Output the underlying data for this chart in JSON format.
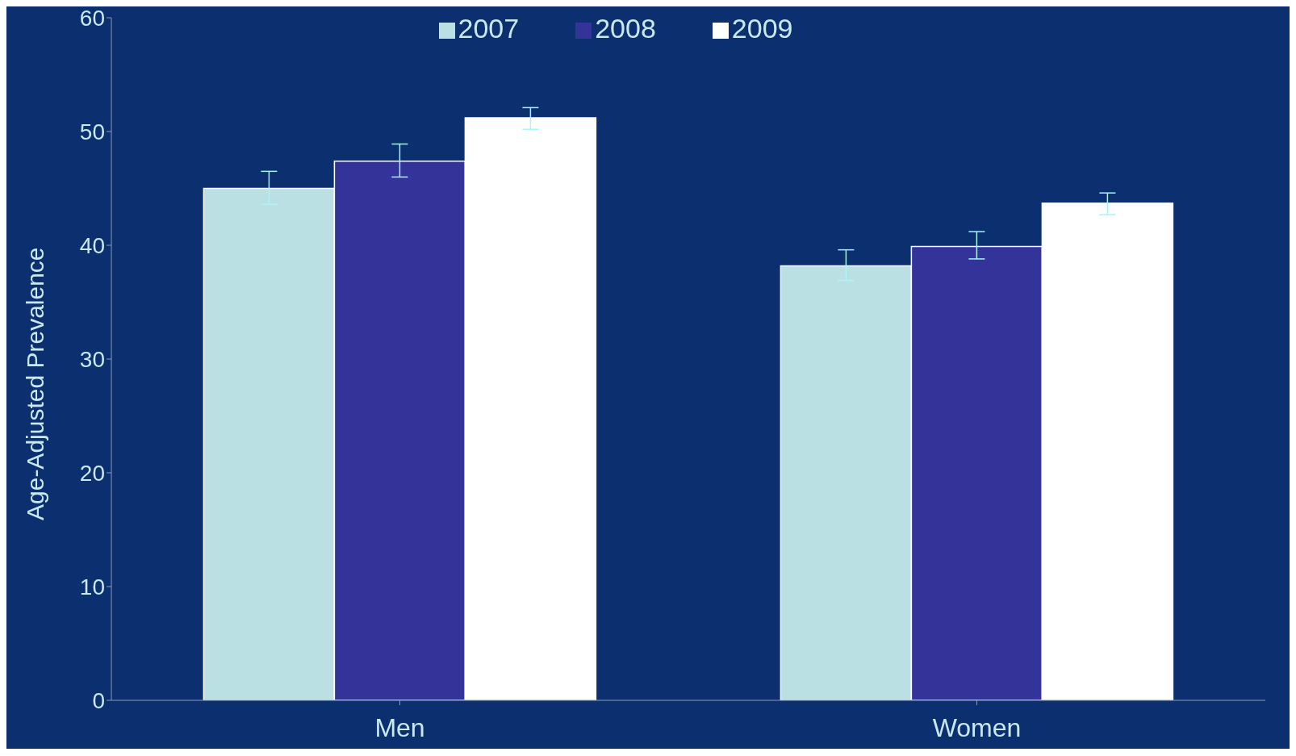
{
  "chart_data": {
    "type": "bar",
    "ylabel": "Age-Adjusted Prevalence",
    "categories": [
      "Men",
      "Women"
    ],
    "series": [
      {
        "name": "2007",
        "color": "#bbe0e3",
        "values": [
          45.0,
          38.2
        ],
        "errors": [
          [
            43.6,
            46.5
          ],
          [
            36.9,
            39.6
          ]
        ]
      },
      {
        "name": "2008",
        "color": "#333399",
        "values": [
          47.4,
          39.9
        ],
        "errors": [
          [
            46.0,
            48.9
          ],
          [
            38.8,
            41.2
          ]
        ]
      },
      {
        "name": "2009",
        "color": "#ffffff",
        "values": [
          51.2,
          43.7
        ],
        "errors": [
          [
            50.2,
            52.1
          ],
          [
            42.7,
            44.6
          ]
        ]
      }
    ],
    "ylim": [
      0,
      60
    ],
    "yticks": [
      0,
      10,
      20,
      30,
      40,
      50,
      60
    ],
    "grid": false,
    "legend": "top"
  }
}
